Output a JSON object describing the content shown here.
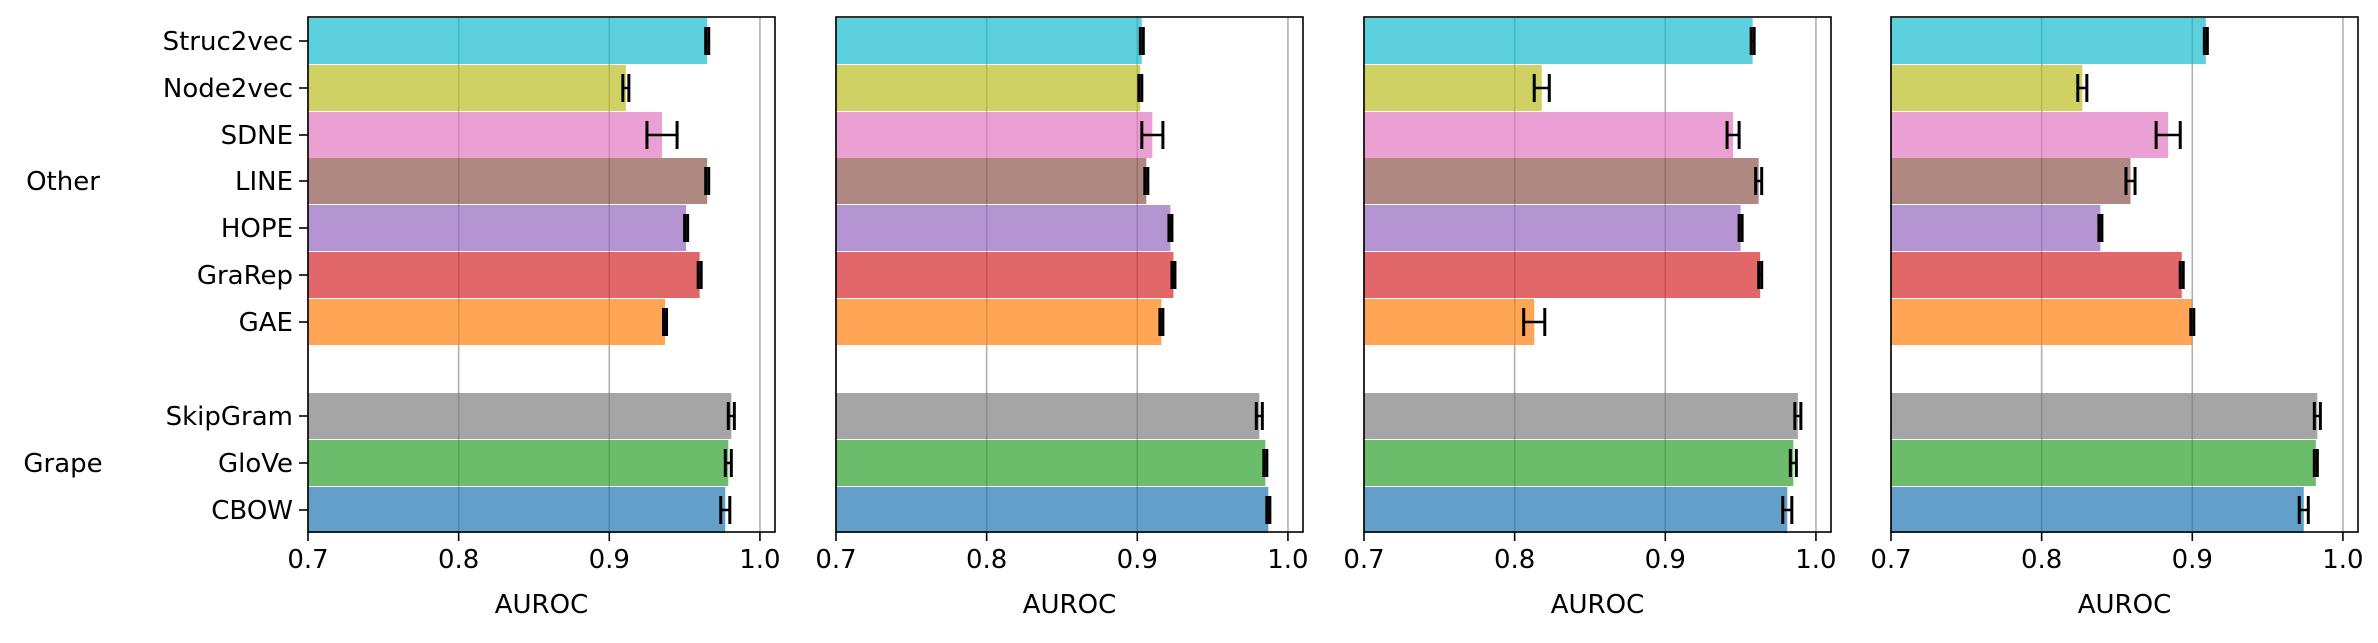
{
  "chart_data": {
    "type": "bar",
    "orientation": "horizontal",
    "categories": [
      "Struc2vec",
      "Node2vec",
      "SDNE",
      "LINE",
      "HOPE",
      "GraRep",
      "GAE",
      "SkipGram",
      "GloVe",
      "CBOW"
    ],
    "groups": [
      {
        "label": "Other",
        "categories": [
          "Struc2vec",
          "Node2vec",
          "SDNE",
          "LINE",
          "HOPE",
          "GraRep",
          "GAE"
        ]
      },
      {
        "label": "Grape",
        "categories": [
          "SkipGram",
          "GloVe",
          "CBOW"
        ]
      }
    ],
    "colors": [
      "#17becf",
      "#bcbd22",
      "#e377c2",
      "#8c564b",
      "#9467bd",
      "#d62728",
      "#ff7f0e",
      "#7f7f7f",
      "#2ca02c",
      "#1f77b4"
    ],
    "bar_opacity": 0.7,
    "xlabel": "AUROC",
    "xlim": [
      0.7,
      1.01
    ],
    "xticks": [
      "0.7",
      "0.8",
      "0.9",
      "1.0"
    ],
    "grid": "x",
    "panels": [
      {
        "values": [
          0.965,
          0.911,
          0.935,
          0.965,
          0.951,
          0.96,
          0.937,
          0.981,
          0.979,
          0.977
        ],
        "errors": [
          0.001,
          0.002,
          0.01,
          0.001,
          0.001,
          0.001,
          0.001,
          0.002,
          0.002,
          0.003
        ]
      },
      {
        "values": [
          0.903,
          0.902,
          0.91,
          0.906,
          0.922,
          0.924,
          0.916,
          0.981,
          0.985,
          0.987
        ],
        "errors": [
          0.001,
          0.001,
          0.007,
          0.001,
          0.001,
          0.001,
          0.001,
          0.002,
          0.001,
          0.001
        ]
      },
      {
        "values": [
          0.958,
          0.818,
          0.945,
          0.962,
          0.95,
          0.963,
          0.813,
          0.988,
          0.985,
          0.981
        ],
        "errors": [
          0.001,
          0.005,
          0.004,
          0.002,
          0.001,
          0.001,
          0.007,
          0.002,
          0.002,
          0.003
        ]
      },
      {
        "values": [
          0.909,
          0.827,
          0.884,
          0.859,
          0.839,
          0.893,
          0.9,
          0.983,
          0.982,
          0.974
        ],
        "errors": [
          0.001,
          0.003,
          0.008,
          0.003,
          0.001,
          0.001,
          0.001,
          0.002,
          0.001,
          0.003
        ]
      }
    ]
  }
}
